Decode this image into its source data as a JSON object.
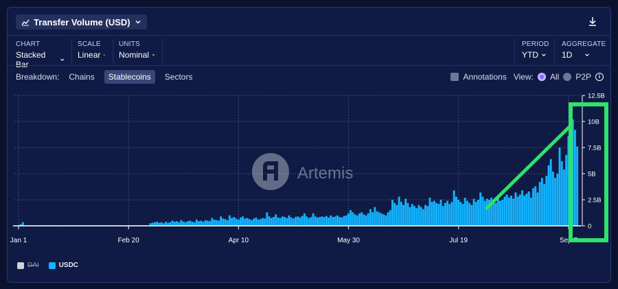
{
  "header": {
    "title": "Transfer Volume (USD)"
  },
  "controls": {
    "chart": {
      "label": "CHART",
      "value": "Stacked Bar"
    },
    "scale": {
      "label": "SCALE",
      "value": "Linear"
    },
    "units": {
      "label": "UNITS",
      "value": "Nominal"
    },
    "period": {
      "label": "PERIOD",
      "value": "YTD"
    },
    "aggregate": {
      "label": "AGGREGATE",
      "value": "1D"
    }
  },
  "breakdown": {
    "label": "Breakdown:",
    "options": [
      "Chains",
      "Stablecoins",
      "Sectors"
    ],
    "active": "Stablecoins"
  },
  "view": {
    "annotations_label": "Annotations",
    "view_label": "View:",
    "all_label": "All",
    "p2p_label": "P2P"
  },
  "watermark": "Artemis",
  "legend": [
    {
      "name": "DAI",
      "color": "#cfd3dc",
      "enabled": false
    },
    {
      "name": "USDC",
      "color": "#14b4ff",
      "enabled": true
    }
  ],
  "colors": {
    "bar": "#14b4ff",
    "highlight": "#2ee26a"
  },
  "chart_data": {
    "type": "bar",
    "stacked": true,
    "title": "Transfer Volume (USD)",
    "x_ticks": [
      "Jan 1",
      "Feb 20",
      "Apr 10",
      "May 30",
      "Jul 19",
      "Sep 7"
    ],
    "y_ticks": [
      "0",
      "2.5B",
      "5B",
      "7.5B",
      "10B",
      "12.5B"
    ],
    "ylim": [
      0,
      12500000000
    ],
    "grid": true,
    "x_start": "Jan 1",
    "x_end": "Sep 17",
    "series": [
      {
        "name": "DAI",
        "values": []
      },
      {
        "name": "USDC",
        "unit": "B USD",
        "values": [
          0.05,
          0.15,
          0.35,
          0.05,
          0.05,
          0.05,
          0.05,
          0.05,
          0.05,
          0.05,
          0.05,
          0.05,
          0.05,
          0.05,
          0.05,
          0.05,
          0.05,
          0.05,
          0.05,
          0.05,
          0.05,
          0.05,
          0.05,
          0.05,
          0.05,
          0.05,
          0.05,
          0.05,
          0.05,
          0.05,
          0.05,
          0.05,
          0.05,
          0.05,
          0.05,
          0.05,
          0.05,
          0.05,
          0.05,
          0.05,
          0.05,
          0.05,
          0.05,
          0.05,
          0.05,
          0.05,
          0.05,
          0.05,
          0.05,
          0.05,
          0.05,
          0.05,
          0.05,
          0.05,
          0.05,
          0.05,
          0.05,
          0.05,
          0.05,
          0.05,
          0.25,
          0.3,
          0.35,
          0.4,
          0.3,
          0.35,
          0.25,
          0.4,
          0.3,
          0.35,
          0.5,
          0.4,
          0.45,
          0.35,
          0.55,
          0.4,
          0.35,
          0.45,
          0.5,
          0.4,
          0.35,
          0.6,
          0.45,
          0.5,
          0.4,
          0.55,
          0.5,
          0.45,
          0.75,
          0.6,
          0.55,
          0.5,
          0.9,
          0.7,
          0.65,
          0.55,
          1.0,
          0.75,
          0.85,
          0.7,
          0.6,
          0.8,
          0.9,
          0.7,
          0.75,
          0.65,
          0.55,
          0.7,
          0.8,
          0.6,
          0.65,
          0.75,
          0.7,
          1.3,
          0.9,
          0.75,
          0.85,
          1.1,
          0.8,
          0.75,
          0.9,
          0.85,
          0.75,
          1.0,
          0.8,
          0.7,
          0.85,
          0.9,
          0.8,
          0.95,
          1.2,
          0.9,
          0.75,
          0.85,
          1.2,
          0.9,
          0.8,
          0.85,
          0.9,
          0.85,
          0.95,
          0.8,
          1.0,
          0.85,
          0.9,
          1.0,
          0.85,
          0.8,
          0.95,
          1.0,
          1.2,
          1.5,
          1.3,
          1.1,
          1.0,
          1.2,
          1.3,
          1.1,
          1.0,
          1.2,
          1.6,
          1.3,
          1.8,
          1.4,
          1.3,
          1.2,
          1.1,
          1.0,
          1.3,
          1.5,
          2.5,
          2.2,
          2.0,
          2.8,
          2.3,
          2.0,
          2.6,
          2.2,
          1.8,
          2.1,
          1.9,
          1.7,
          2.0,
          1.8,
          1.6,
          2.0,
          1.9,
          2.7,
          2.3,
          2.4,
          2.2,
          2.1,
          2.5,
          1.9,
          2.2,
          2.4,
          2.1,
          2.3,
          3.4,
          2.8,
          2.5,
          2.3,
          2.1,
          2.7,
          2.4,
          2.2,
          2.0,
          2.6,
          2.3,
          2.5,
          3.2,
          2.8,
          2.4,
          2.6,
          2.5,
          2.7,
          2.3,
          2.2,
          2.6,
          2.4,
          2.5,
          2.8,
          3.0,
          2.7,
          2.9,
          2.6,
          3.2,
          2.8,
          3.0,
          3.4,
          2.9,
          3.1,
          3.3,
          2.7,
          3.6,
          3.8,
          3.2,
          4.2,
          4.6,
          4.0,
          4.8,
          5.8,
          6.4,
          5.2,
          4.6,
          5.0,
          7.5,
          6.2,
          5.4,
          6.8,
          8.6,
          9.6,
          10.2,
          9.2,
          7.6
        ]
      }
    ]
  }
}
